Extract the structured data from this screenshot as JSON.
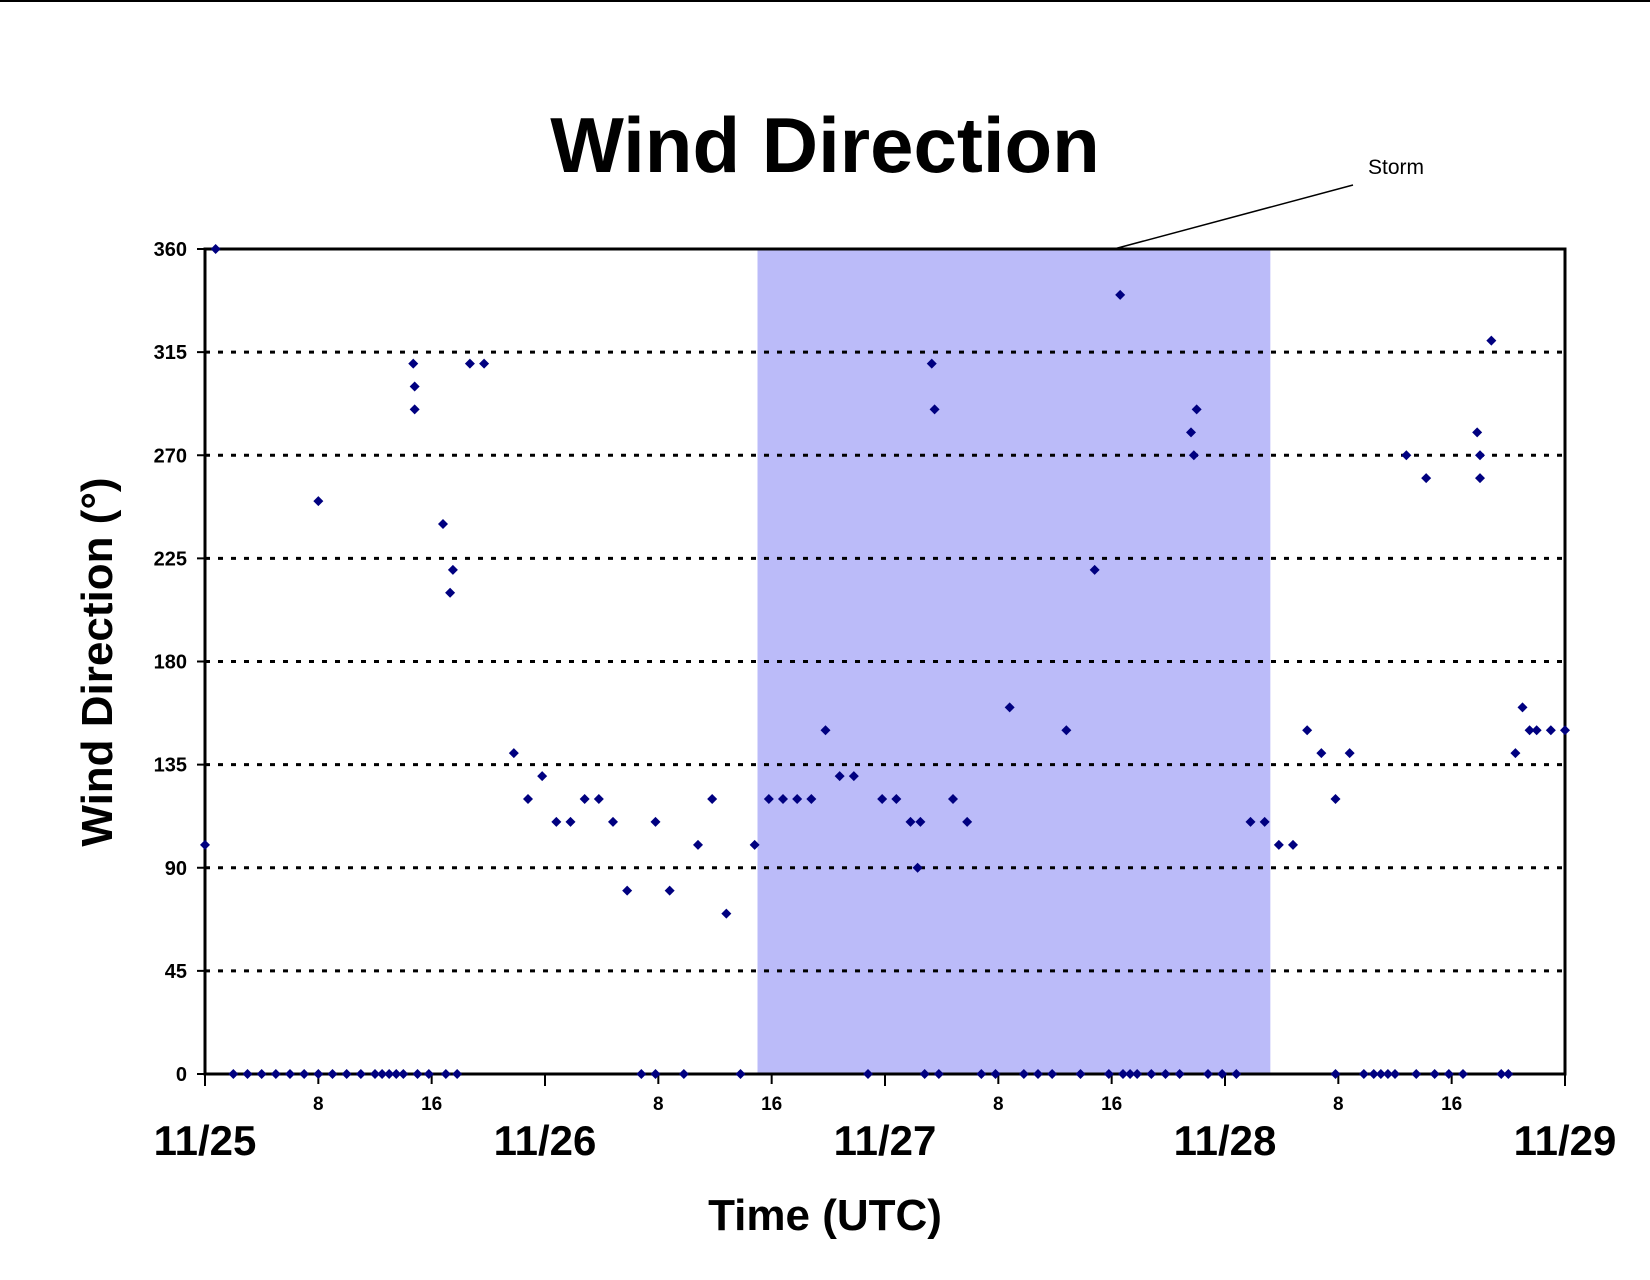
{
  "chart_data": {
    "type": "scatter",
    "title": "Wind Direction",
    "x_label": "Time (UTC)",
    "y_label": "Wind Direction (°)",
    "xlim": [
      0,
      96
    ],
    "ylim": [
      0,
      360
    ],
    "yticks": [
      0,
      45,
      90,
      135,
      180,
      225,
      270,
      315,
      360
    ],
    "xticks": [
      {
        "value": 0,
        "label": "11/25"
      },
      {
        "value": 24,
        "label": "11/26"
      },
      {
        "value": 48,
        "label": "11/27"
      },
      {
        "value": 72,
        "label": "11/28"
      },
      {
        "value": 96,
        "label": "11/29"
      }
    ],
    "xticks_minor": [
      8,
      16,
      {
        "value": 32,
        "label": "8"
      },
      {
        "value": 40,
        "label": "16"
      },
      {
        "value": 56,
        "label": "8"
      },
      {
        "value": 64,
        "label": "16"
      },
      {
        "value": 80,
        "label": "8"
      },
      {
        "value": 88,
        "label": "16"
      }
    ],
    "grid": true,
    "storm": {
      "label": "Storm",
      "start": 39,
      "end": 75.2,
      "color": "#bbbbf9"
    },
    "series": [
      {
        "name": "Wind direction",
        "color": "#000080",
        "x": [
          0,
          0.75,
          2,
          3,
          4,
          5,
          6,
          7,
          8,
          8,
          9,
          10,
          11,
          12,
          12.5,
          13,
          13.5,
          14,
          14.7,
          14.8,
          14.8,
          15,
          15.8,
          16.8,
          17,
          17.3,
          17.5,
          17.8,
          18.7,
          19.7,
          21.8,
          22.8,
          23.8,
          24.8,
          25.8,
          26.8,
          27.8,
          28.8,
          29.8,
          30.8,
          31.8,
          31.8,
          32.8,
          33.8,
          34.8,
          35.8,
          36.8,
          37.8,
          38.8,
          39.8,
          40.8,
          41.8,
          42.8,
          43.8,
          44.8,
          45.8,
          46.8,
          47.8,
          48.8,
          49.8,
          50.3,
          50.5,
          50.8,
          51.3,
          51.5,
          51.8,
          52.8,
          53.8,
          54.8,
          55.8,
          56.8,
          57.8,
          58.8,
          59.8,
          60.8,
          61.8,
          62.8,
          63.8,
          64.6,
          64.8,
          65.3,
          65.8,
          66.8,
          67.8,
          68.8,
          69.6,
          69.8,
          70,
          70.8,
          71.8,
          72.8,
          73.8,
          74.8,
          75.8,
          76.8,
          77.8,
          78.8,
          79.8,
          79.8,
          80.8,
          81.8,
          82.5,
          83,
          83.5,
          84,
          84.8,
          85.5,
          86.2,
          86.8,
          87.8,
          88.8,
          89.8,
          90,
          90,
          90.8,
          91.5,
          92,
          92.5,
          93,
          93.5,
          94,
          95,
          96
        ],
        "values": [
          100,
          360,
          0,
          0,
          0,
          0,
          0,
          0,
          250,
          0,
          0,
          0,
          0,
          0,
          0,
          0,
          0,
          0,
          310,
          300,
          290,
          0,
          0,
          240,
          0,
          210,
          220,
          0,
          310,
          310,
          140,
          120,
          130,
          110,
          110,
          120,
          120,
          110,
          80,
          0,
          110,
          0,
          80,
          0,
          100,
          120,
          70,
          0,
          100,
          120,
          120,
          120,
          120,
          150,
          130,
          130,
          0,
          120,
          120,
          110,
          90,
          110,
          0,
          310,
          290,
          0,
          120,
          110,
          0,
          0,
          160,
          0,
          0,
          0,
          150,
          0,
          220,
          0,
          340,
          0,
          0,
          0,
          0,
          0,
          0,
          280,
          270,
          290,
          0,
          0,
          0,
          110,
          110,
          100,
          100,
          150,
          140,
          120,
          0,
          140,
          0,
          0,
          0,
          0,
          0,
          270,
          0,
          260,
          0,
          0,
          0,
          280,
          270,
          260,
          320,
          0,
          0,
          140,
          160,
          150,
          150,
          150,
          150
        ]
      }
    ]
  }
}
